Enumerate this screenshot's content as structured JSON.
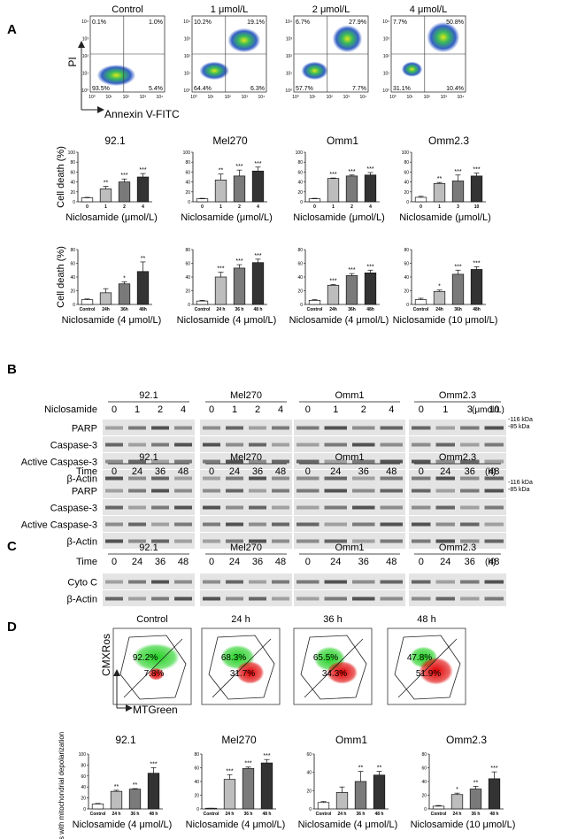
{
  "panel_labels": {
    "A": "A",
    "B": "B",
    "C": "C",
    "D": "D"
  },
  "flow": {
    "y_label": "PI",
    "x_label": "Annexin V-FITC",
    "axis_ticks": [
      "10⁰",
      "10¹",
      "10²",
      "10³",
      "10⁴"
    ],
    "plots": [
      {
        "title": "Control",
        "q": [
          "0.1%",
          "1.0%",
          "93.5%",
          "5.4%"
        ]
      },
      {
        "title": "1 μmol/L",
        "q": [
          "10.2%",
          "19.1%",
          "64.4%",
          "6.3%"
        ]
      },
      {
        "title": "2 μmol/L",
        "q": [
          "6.7%",
          "27.9%",
          "57.7%",
          "7.7%"
        ]
      },
      {
        "title": "4 μmol/L",
        "q": [
          "7.7%",
          "50.8%",
          "31.1%",
          "10.4%"
        ]
      }
    ]
  },
  "chart_data": [
    {
      "type": "bar",
      "title": "92.1",
      "ylabel": "Cell death (%)",
      "xlabel": "Niclosamide (μmol/L)",
      "ylim": [
        0,
        100
      ],
      "yticks": [
        "0",
        "20",
        "40",
        "60",
        "80",
        "100"
      ],
      "categories": [
        "0",
        "1",
        "2",
        "4"
      ],
      "values": [
        8,
        26,
        40,
        50
      ],
      "errors": [
        1,
        5,
        6,
        7
      ],
      "sig": [
        "",
        "**",
        "***",
        "***"
      ]
    },
    {
      "type": "bar",
      "title": "Mel270",
      "ylabel": "",
      "xlabel": "Niclosamide (μmol/L)",
      "ylim": [
        0,
        100
      ],
      "yticks": [
        "0",
        "20",
        "40",
        "60",
        "80",
        "100"
      ],
      "categories": [
        "0",
        "1",
        "2",
        "4"
      ],
      "values": [
        6,
        44,
        52,
        62
      ],
      "errors": [
        1,
        12,
        12,
        8
      ],
      "sig": [
        "",
        "**",
        "***",
        "***"
      ]
    },
    {
      "type": "bar",
      "title": "Omm1",
      "ylabel": "",
      "xlabel": "Niclosamide (μmol/L)",
      "ylim": [
        0,
        100
      ],
      "yticks": [
        "0",
        "20",
        "40",
        "60",
        "80",
        "100"
      ],
      "categories": [
        "0",
        "1",
        "2",
        "4"
      ],
      "values": [
        6,
        47,
        52,
        54
      ],
      "errors": [
        1,
        1,
        2,
        5
      ],
      "sig": [
        "",
        "***",
        "***",
        "***"
      ]
    },
    {
      "type": "bar",
      "title": "Omm2.3",
      "ylabel": "",
      "xlabel": "Niclosamide (μmol/L)",
      "ylim": [
        0,
        100
      ],
      "yticks": [
        "0",
        "20",
        "40",
        "60",
        "80",
        "100"
      ],
      "categories": [
        "0",
        "1",
        "3",
        "10"
      ],
      "values": [
        9,
        37,
        42,
        52
      ],
      "errors": [
        2,
        2,
        12,
        6
      ],
      "sig": [
        "",
        "**",
        "***",
        "***"
      ]
    },
    {
      "type": "bar",
      "title": "",
      "ylabel": "Cell death (%)",
      "xlabel": "Niclosamide (4 μmol/L)",
      "ylim": [
        0,
        80
      ],
      "yticks": [
        "0",
        "20",
        "40",
        "60",
        "80"
      ],
      "categories": [
        "Control",
        "24h",
        "36h",
        "48h"
      ],
      "values": [
        7,
        17,
        30,
        48
      ],
      "errors": [
        1,
        6,
        3,
        14
      ],
      "sig": [
        "",
        "",
        "*",
        "**"
      ]
    },
    {
      "type": "bar",
      "title": "",
      "ylabel": "",
      "xlabel": "Niclosamide (4 μmol/L)",
      "ylim": [
        0,
        80
      ],
      "yticks": [
        "0",
        "20",
        "40",
        "60",
        "80"
      ],
      "categories": [
        "Control",
        "24 h",
        "36 h",
        "48 h"
      ],
      "values": [
        5,
        40,
        53,
        61
      ],
      "errors": [
        1,
        7,
        5,
        5
      ],
      "sig": [
        "",
        "***",
        "***",
        "***"
      ]
    },
    {
      "type": "bar",
      "title": "",
      "ylabel": "",
      "xlabel": "Niclosamide (4 μmol/L)",
      "ylim": [
        0,
        80
      ],
      "yticks": [
        "0",
        "20",
        "40",
        "60",
        "80"
      ],
      "categories": [
        "Control",
        "24h",
        "36h",
        "48h"
      ],
      "values": [
        6,
        28,
        42,
        46
      ],
      "errors": [
        1,
        1,
        3,
        4
      ],
      "sig": [
        "",
        "***",
        "***",
        "***"
      ]
    },
    {
      "type": "bar",
      "title": "",
      "ylabel": "",
      "xlabel": "Niclosamide (10 μmol/L)",
      "ylim": [
        0,
        80
      ],
      "yticks": [
        "0",
        "20",
        "40",
        "60",
        "80"
      ],
      "categories": [
        "Control",
        "24h",
        "36h",
        "48h"
      ],
      "values": [
        7,
        19,
        44,
        51
      ],
      "errors": [
        2,
        2,
        6,
        4
      ],
      "sig": [
        "",
        "*",
        "***",
        "***"
      ]
    },
    {
      "type": "bar",
      "title": "92.1",
      "ylabel": "% of cells with mitochondrial depolarization",
      "xlabel": "Niclosamide (4 μmol/L)",
      "ylim": [
        0,
        100
      ],
      "yticks": [
        "0",
        "20",
        "40",
        "60",
        "80",
        "100"
      ],
      "categories": [
        "Control",
        "24 h",
        "36 h",
        "48 h"
      ],
      "values": [
        9,
        32,
        36,
        65
      ],
      "errors": [
        1,
        2,
        1,
        10
      ],
      "sig": [
        "",
        "**",
        "**",
        "***"
      ]
    },
    {
      "type": "bar",
      "title": "Mel270",
      "ylabel": "",
      "xlabel": "Niclosamide (4 μmol/L)",
      "ylim": [
        0,
        80
      ],
      "yticks": [
        "0",
        "20",
        "40",
        "60",
        "80"
      ],
      "categories": [
        "Control",
        "24 h",
        "36 h",
        "48 h"
      ],
      "values": [
        1,
        43,
        59,
        67
      ],
      "errors": [
        0,
        7,
        2,
        5
      ],
      "sig": [
        "",
        "***",
        "***",
        "***"
      ]
    },
    {
      "type": "bar",
      "title": "Omm1",
      "ylabel": "",
      "xlabel": "Niclosamide (4 μmol/L)",
      "ylim": [
        0,
        60
      ],
      "yticks": [
        "0",
        "20",
        "40",
        "60"
      ],
      "categories": [
        "Control",
        "24 h",
        "36 h",
        "48 h"
      ],
      "values": [
        7,
        18,
        30,
        37
      ],
      "errors": [
        1,
        6,
        11,
        4
      ],
      "sig": [
        "",
        "",
        "**",
        "**"
      ]
    },
    {
      "type": "bar",
      "title": "Omm2.3",
      "ylabel": "",
      "xlabel": "Niclosamide (10 μmol/L)",
      "ylim": [
        0,
        80
      ],
      "yticks": [
        "0",
        "20",
        "40",
        "60",
        "80"
      ],
      "categories": [
        "Control",
        "24 h",
        "36 h",
        "48 h"
      ],
      "values": [
        4,
        21,
        29,
        44
      ],
      "errors": [
        1,
        2,
        4,
        10
      ],
      "sig": [
        "",
        "*",
        "**",
        "***"
      ]
    }
  ],
  "blots": {
    "cells": [
      "92.1",
      "Mel270",
      "Omm1",
      "Omm2.3"
    ],
    "dose": {
      "label": "Niclosamide",
      "unit": "(μmol/L)",
      "lanes": [
        [
          "0",
          "1",
          "2",
          "4"
        ],
        [
          "0",
          "1",
          "2",
          "4"
        ],
        [
          "0",
          "1",
          "2",
          "4"
        ],
        [
          "0",
          "1",
          "3",
          "10"
        ]
      ],
      "rows": [
        "PARP",
        "Caspase-3",
        "Active Caspase-3",
        "β-Actin"
      ],
      "kda": [
        "-116 kDa",
        "-85 kDa"
      ]
    },
    "time": {
      "label": "Time",
      "unit": "(h)",
      "lanes": [
        [
          "0",
          "24",
          "36",
          "48"
        ],
        [
          "0",
          "24",
          "36",
          "48"
        ],
        [
          "0",
          "24",
          "36",
          "48"
        ],
        [
          "0",
          "24",
          "36",
          "48"
        ]
      ],
      "rows": [
        "PARP",
        "Caspase-3",
        "Active Caspase-3",
        "β-Actin"
      ],
      "kda": [
        "-116 kDa",
        "-85 kDa"
      ]
    },
    "cyto": {
      "label": "Time",
      "unit": "(h)",
      "lanes": [
        [
          "0",
          "24",
          "36",
          "48"
        ],
        [
          "0",
          "24",
          "36",
          "48"
        ],
        [
          "0",
          "24",
          "36",
          "48"
        ],
        [
          "0",
          "24",
          "36",
          "48"
        ]
      ],
      "rows": [
        "Cyto C",
        "β-Actin"
      ]
    }
  },
  "mito": {
    "y_label": "CMXRos",
    "x_label": "MTGreen",
    "plots": [
      {
        "title": "Control",
        "green": "92.2%",
        "red": "7.8%"
      },
      {
        "title": "24 h",
        "green": "68.3%",
        "red": "31.7%"
      },
      {
        "title": "36 h",
        "green": "65.5%",
        "red": "34.3%"
      },
      {
        "title": "48 h",
        "green": "47.8%",
        "red": "51.9%"
      }
    ]
  }
}
